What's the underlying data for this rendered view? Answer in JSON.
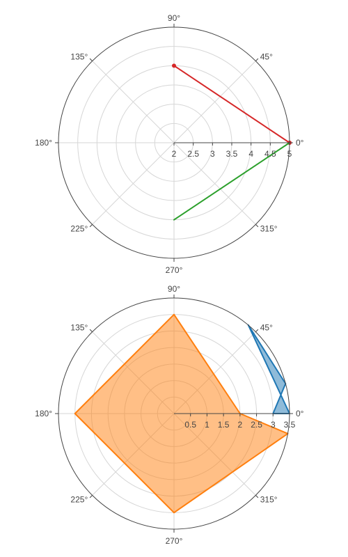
{
  "chart_data": [
    {
      "type": "polar",
      "r_range": [
        2,
        5
      ],
      "r_ticks": [
        2,
        2.5,
        3,
        3.5,
        4,
        4.5,
        5
      ],
      "r_tick_labels": [
        "2",
        "2.5",
        "3",
        "3.5",
        "4",
        "4.5",
        "5"
      ],
      "angular_ticks": [
        0,
        45,
        90,
        135,
        180,
        225,
        270,
        315
      ],
      "angular_tick_labels": [
        "0°",
        "45°",
        "90°",
        "135°",
        "180°",
        "225°",
        "270°",
        "315°"
      ],
      "grid": true,
      "series": [
        {
          "theta": [
            0,
            90,
            0
          ],
          "r": [
            5,
            4,
            5
          ],
          "fill": "toself",
          "color": "#d62728",
          "markers": true
        },
        {
          "theta": [
            0,
            270,
            0
          ],
          "r": [
            5,
            4,
            5
          ],
          "fill": "toself",
          "color": "#2ca02c",
          "markers": false
        }
      ]
    },
    {
      "type": "polar",
      "r_range": [
        0,
        3.5
      ],
      "r_ticks": [
        0.5,
        1,
        1.5,
        2,
        2.5,
        3,
        3.5
      ],
      "r_tick_labels": [
        "0.5",
        "1",
        "1.5",
        "2",
        "2.5",
        "3",
        "3.5"
      ],
      "angular_ticks": [
        0,
        45,
        90,
        135,
        180,
        225,
        270,
        315
      ],
      "angular_tick_labels": [
        "0°",
        "45°",
        "90°",
        "135°",
        "180°",
        "225°",
        "270°",
        "315°"
      ],
      "grid": true,
      "series": [
        {
          "theta": [
            0,
            15,
            50,
            0
          ],
          "r": [
            3,
            3.5,
            3.5,
            3.5
          ],
          "fill": "toself",
          "color": "#1f77b4",
          "markers": false
        },
        {
          "theta": [
            0,
            90,
            180,
            270,
            350,
            0
          ],
          "r": [
            2,
            3,
            3,
            3,
            3.5,
            2
          ],
          "fill": "toself",
          "color": "#ff7f0e",
          "markers": false
        }
      ]
    }
  ]
}
